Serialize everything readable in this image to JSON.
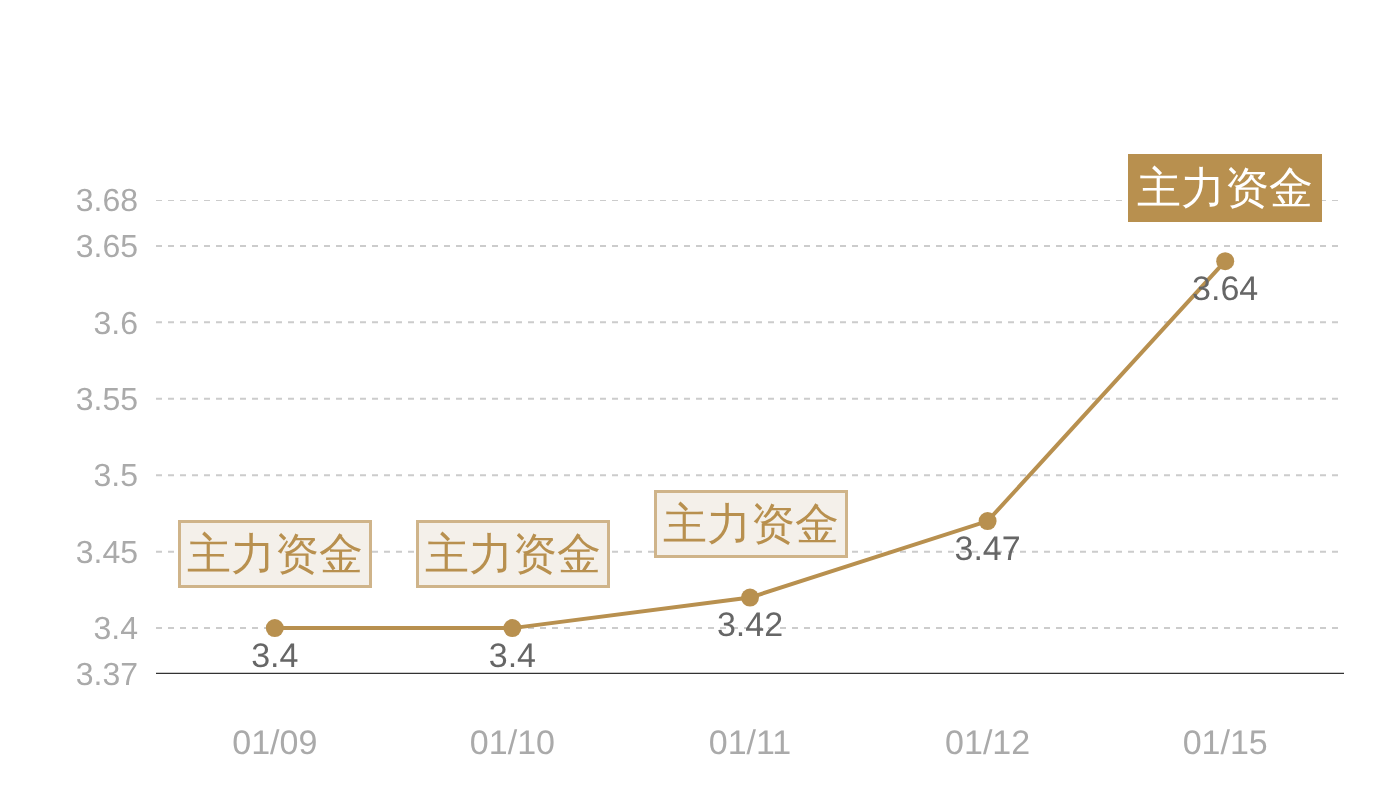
{
  "chart_data": {
    "type": "line",
    "categories": [
      "01/09",
      "01/10",
      "01/11",
      "01/12",
      "01/15"
    ],
    "series": [
      {
        "color": "#b8904f",
        "values": [
          3.4,
          3.4,
          3.42,
          3.47,
          3.64
        ]
      }
    ],
    "ylim": [
      3.37,
      3.68
    ],
    "yticks": [
      3.37,
      3.4,
      3.45,
      3.5,
      3.55,
      3.6,
      3.65,
      3.68
    ],
    "grid": "y",
    "marker": "circle",
    "line_style": "solid",
    "data_labels": true,
    "annotations": [
      {
        "text": "主力资金",
        "x": "01/09",
        "y": 3.4
      },
      {
        "text": "主力资金",
        "x": "01/10",
        "y": 3.4
      },
      {
        "text": "主力资金",
        "x": "01/11",
        "y": 3.42
      },
      {
        "text": "主力资金",
        "x": "01/15",
        "y": 3.64
      }
    ]
  }
}
